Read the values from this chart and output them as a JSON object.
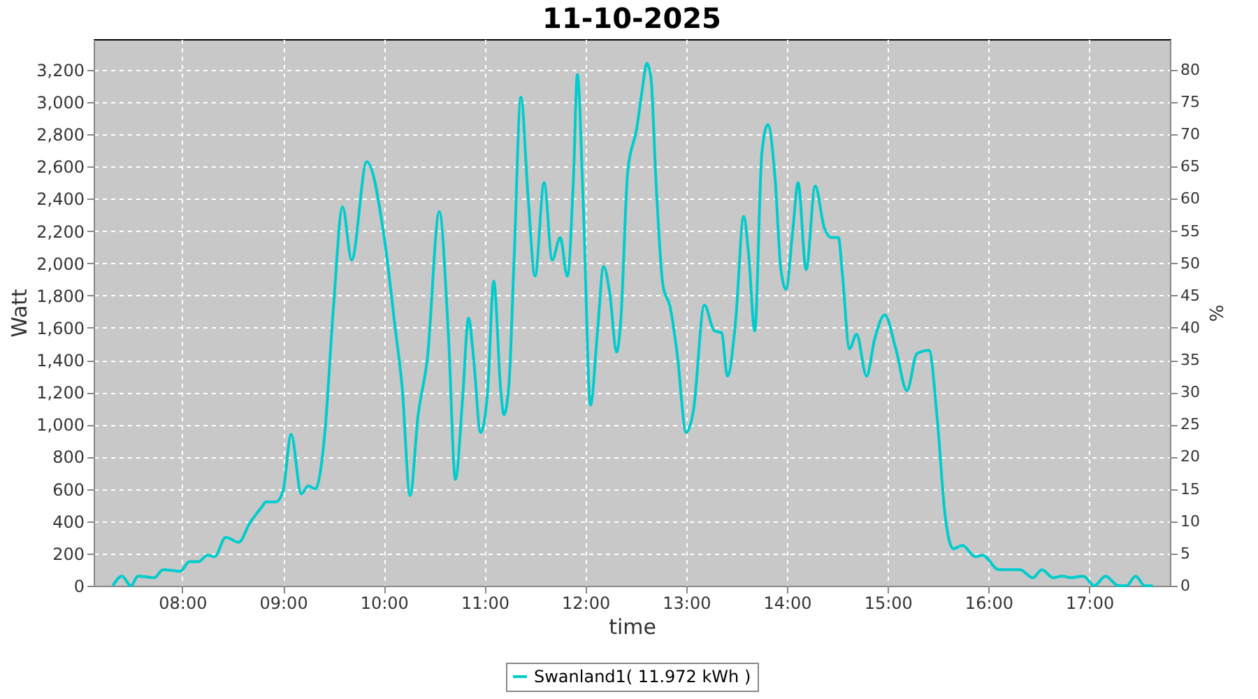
{
  "chart_data": {
    "type": "line",
    "title": "11-10-2025",
    "xlabel": "time",
    "ylabel": "Watt",
    "y2label": "%",
    "xlim": [
      7.12,
      17.8
    ],
    "xticks": [
      {
        "value": 8,
        "label": "08:00"
      },
      {
        "value": 9,
        "label": "09:00"
      },
      {
        "value": 10,
        "label": "10:00"
      },
      {
        "value": 11,
        "label": "11:00"
      },
      {
        "value": 12,
        "label": "12:00"
      },
      {
        "value": 13,
        "label": "13:00"
      },
      {
        "value": 14,
        "label": "14:00"
      },
      {
        "value": 15,
        "label": "15:00"
      },
      {
        "value": 16,
        "label": "16:00"
      },
      {
        "value": 17,
        "label": "17:00"
      }
    ],
    "ylim": [
      0,
      3390
    ],
    "yticks": [
      0,
      200,
      400,
      600,
      800,
      {
        "value": 1000,
        "label": "1,000"
      },
      {
        "value": 1200,
        "label": "1,200"
      },
      {
        "value": 1400,
        "label": "1,400"
      },
      {
        "value": 1600,
        "label": "1,600"
      },
      {
        "value": 1800,
        "label": "1,800"
      },
      {
        "value": 2000,
        "label": "2,000"
      },
      {
        "value": 2200,
        "label": "2,200"
      },
      {
        "value": 2400,
        "label": "2,400"
      },
      {
        "value": 2600,
        "label": "2,600"
      },
      {
        "value": 2800,
        "label": "2,800"
      },
      {
        "value": 3000,
        "label": "3,000"
      },
      {
        "value": 3200,
        "label": "3,200"
      }
    ],
    "y2lim": [
      0,
      84.75
    ],
    "y2ticks": [
      0,
      5,
      10,
      15,
      20,
      25,
      30,
      35,
      40,
      45,
      50,
      55,
      60,
      65,
      70,
      75,
      80
    ],
    "grid": true,
    "legend": "bottom",
    "marker": "none",
    "line_style": "solid",
    "x": [
      7.31,
      7.4,
      7.49,
      7.56,
      7.72,
      7.81,
      7.98,
      8.07,
      8.16,
      8.25,
      8.32,
      8.43,
      8.56,
      8.67,
      8.79,
      8.83,
      8.93,
      9.0,
      9.08,
      9.18,
      9.25,
      9.32,
      9.41,
      9.5,
      9.59,
      9.68,
      9.83,
      10.01,
      10.11,
      10.18,
      10.26,
      10.34,
      10.43,
      10.55,
      10.64,
      10.71,
      10.78,
      10.84,
      10.89,
      10.96,
      11.03,
      11.09,
      11.16,
      11.19,
      11.24,
      11.29,
      11.36,
      11.43,
      11.5,
      11.59,
      11.67,
      11.75,
      11.82,
      11.88,
      11.92,
      11.98,
      12.05,
      12.12,
      12.18,
      12.24,
      12.31,
      12.35,
      12.42,
      12.51,
      12.56,
      12.61,
      12.65,
      12.7,
      12.77,
      12.84,
      12.91,
      13.0,
      13.07,
      13.18,
      13.28,
      13.35,
      13.41,
      13.49,
      13.57,
      13.62,
      13.68,
      13.75,
      13.81,
      13.88,
      13.94,
      13.99,
      14.06,
      14.11,
      14.19,
      14.28,
      14.37,
      14.44,
      14.51,
      14.55,
      14.62,
      14.69,
      14.79,
      14.87,
      14.97,
      15.08,
      15.19,
      15.29,
      15.41,
      15.49,
      15.57,
      15.65,
      15.74,
      15.87,
      15.94,
      16.1,
      16.31,
      16.44,
      16.53,
      16.64,
      16.73,
      16.82,
      16.94,
      17.05,
      17.16,
      17.29,
      17.37,
      17.46,
      17.55,
      17.63
    ],
    "series": [
      {
        "name": "Swanland1( 11.972 kWh )",
        "color": "#00cccc",
        "values": [
          0,
          60,
          0,
          60,
          50,
          100,
          90,
          150,
          150,
          190,
          180,
          300,
          270,
          390,
          490,
          520,
          520,
          590,
          940,
          570,
          620,
          600,
          920,
          1730,
          2350,
          2020,
          2630,
          2130,
          1610,
          1240,
          560,
          1060,
          1400,
          2320,
          1560,
          660,
          1150,
          1660,
          1410,
          950,
          1210,
          1890,
          1210,
          1060,
          1240,
          1990,
          3030,
          2420,
          1920,
          2500,
          2020,
          2160,
          1920,
          2510,
          3170,
          2340,
          1120,
          1580,
          1980,
          1820,
          1450,
          1640,
          2570,
          2840,
          3060,
          3240,
          3150,
          2510,
          1860,
          1730,
          1440,
          950,
          1080,
          1740,
          1580,
          1570,
          1300,
          1640,
          2290,
          2050,
          1580,
          2680,
          2860,
          2540,
          1960,
          1840,
          2220,
          2500,
          1960,
          2480,
          2220,
          2160,
          2160,
          1930,
          1470,
          1560,
          1300,
          1530,
          1680,
          1470,
          1210,
          1440,
          1460,
          1040,
          430,
          230,
          250,
          180,
          190,
          100,
          100,
          50,
          100,
          50,
          60,
          50,
          60,
          0,
          60,
          0,
          0,
          60,
          0,
          0
        ]
      }
    ]
  }
}
